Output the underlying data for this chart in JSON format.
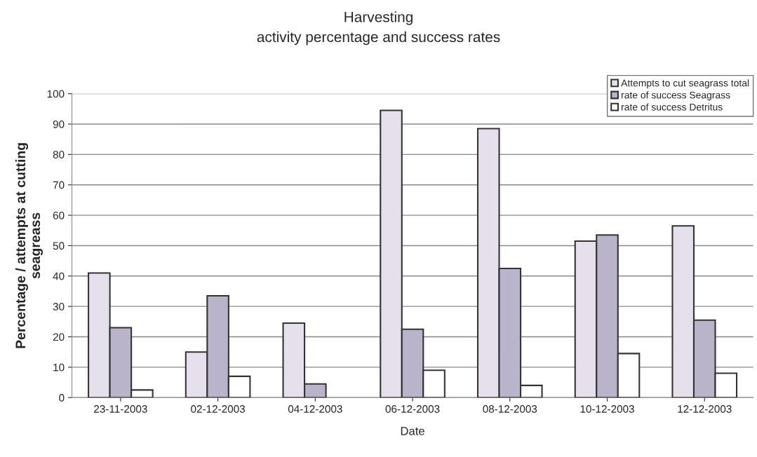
{
  "chart_data": {
    "type": "bar",
    "title": "Harvesting\nactivity percentage and success rates",
    "xlabel": "Date",
    "ylabel": "Percentage / attempts at cutting\nseagreass",
    "categories": [
      "23-11-2003",
      "02-12-2003",
      "04-12-2003",
      "06-12-2003",
      "08-12-2003",
      "10-12-2003",
      "12-12-2003"
    ],
    "series": [
      {
        "name": "Attempts to cut seagrass total",
        "color": "#e6e0ec",
        "values": [
          41,
          15,
          24.5,
          94.5,
          88.5,
          51.5,
          56.5
        ]
      },
      {
        "name": "rate of success Seagrass",
        "color": "#b9b4c9",
        "values": [
          23,
          33.5,
          4.5,
          22.5,
          42.5,
          53.5,
          25.5
        ]
      },
      {
        "name": "rate of success Detritus",
        "color": "#ffffff",
        "values": [
          2.5,
          7,
          null,
          9,
          4,
          14.5,
          8
        ]
      }
    ],
    "ylim": [
      0,
      100
    ],
    "yticks": [
      0,
      10,
      20,
      30,
      40,
      50,
      60,
      70,
      80,
      90,
      100
    ],
    "grid": "y",
    "legend": "top right"
  }
}
